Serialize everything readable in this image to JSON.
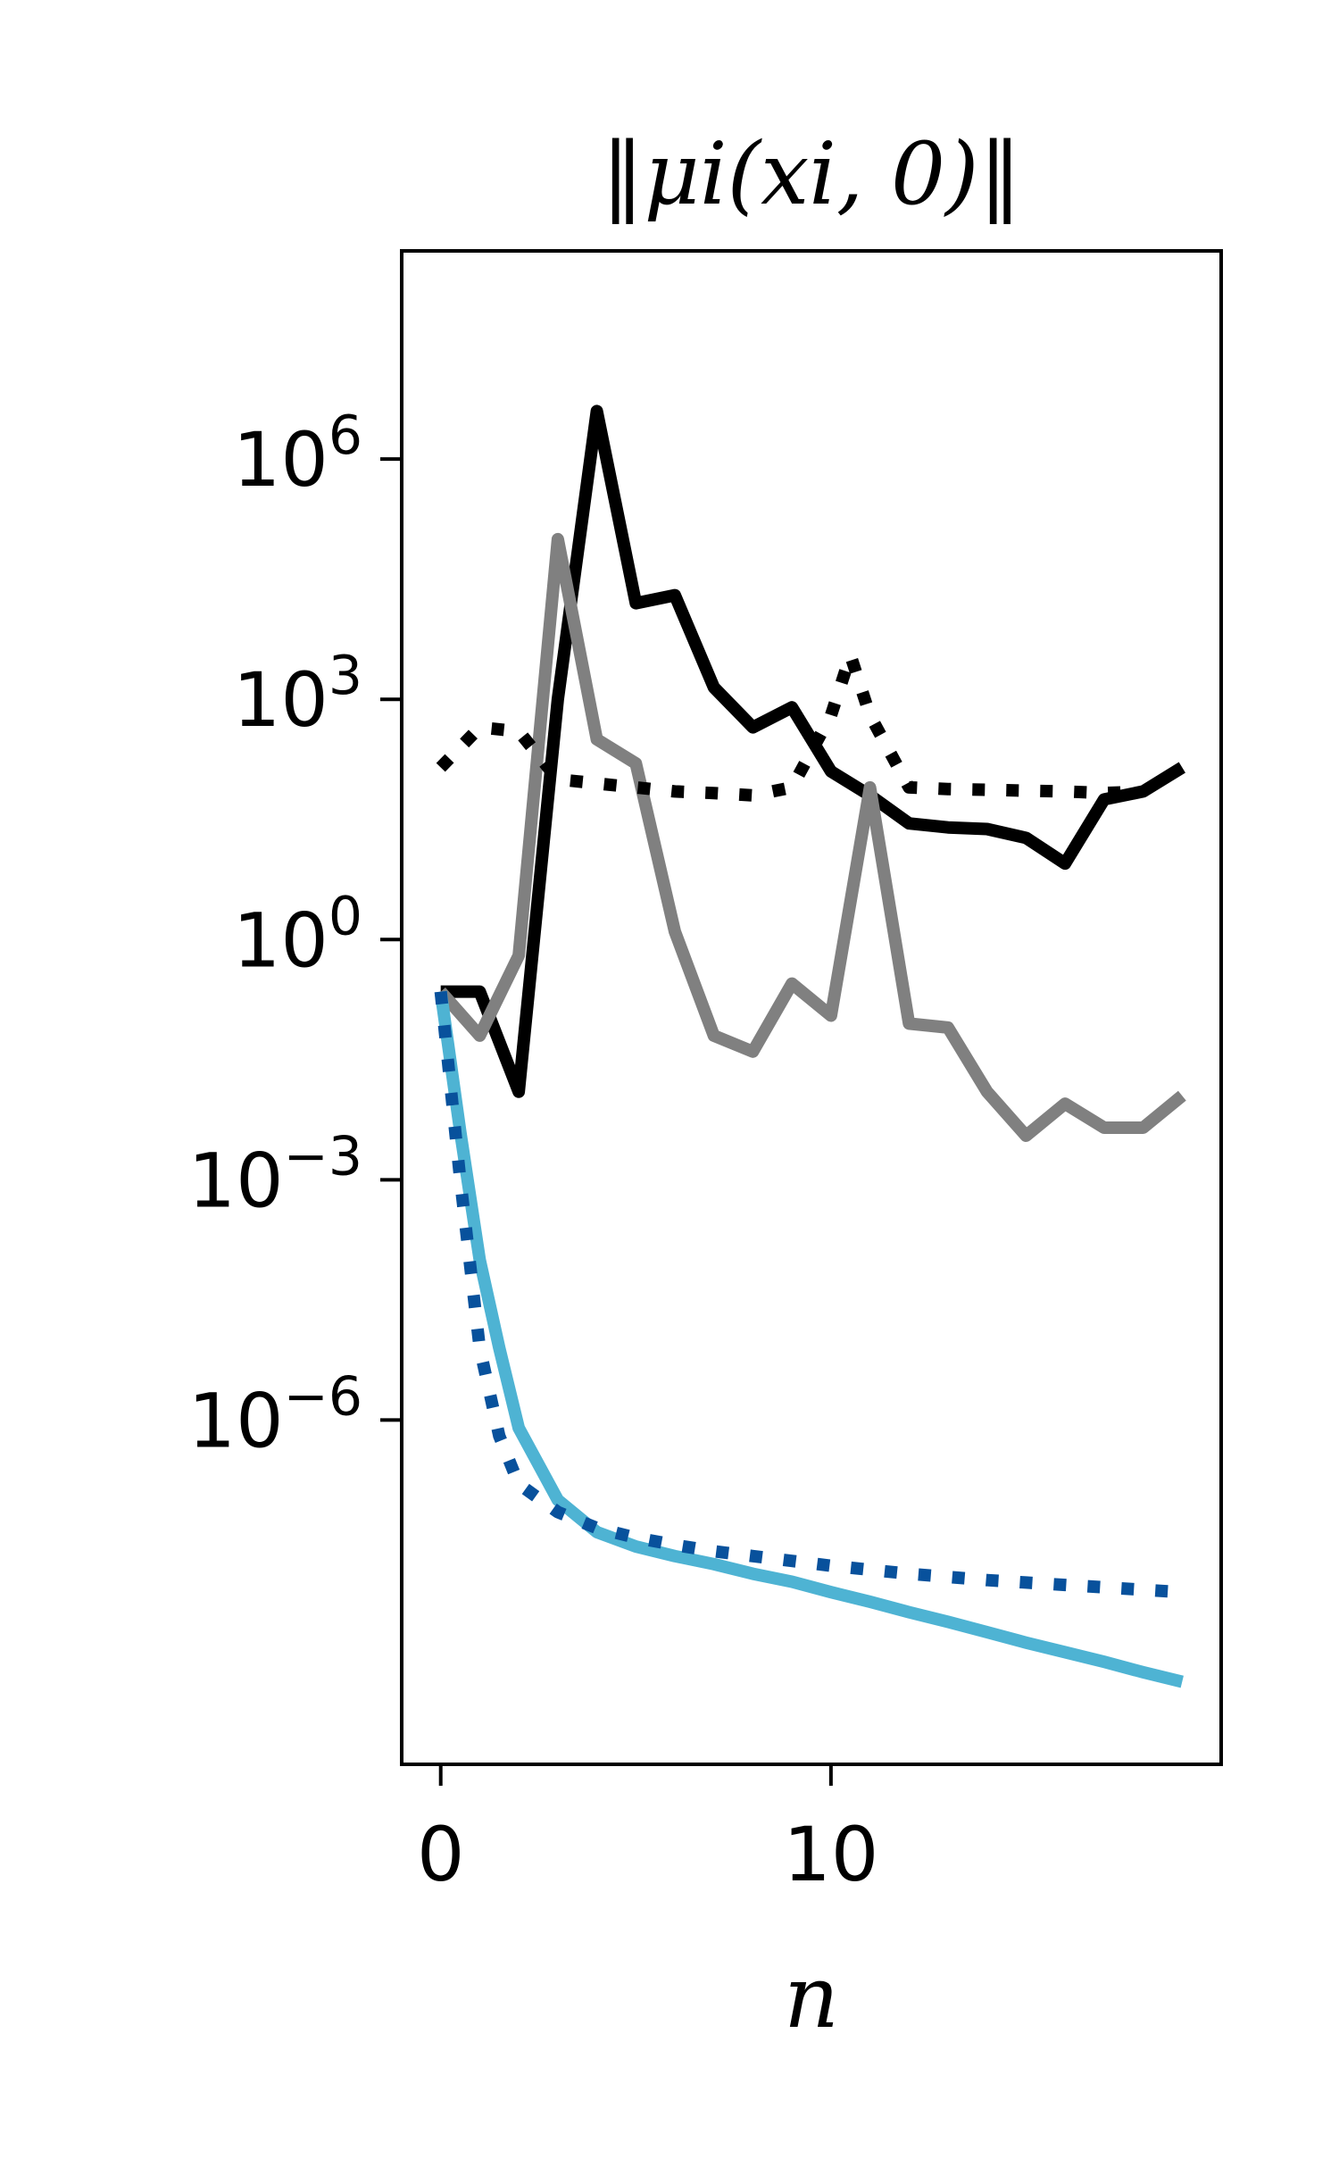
{
  "chart_data": {
    "type": "line",
    "title": "‖μi(xi, 0)‖",
    "xlabel": "n",
    "ylabel": "",
    "y_scale": "log",
    "xlim": [
      -1,
      20
    ],
    "ylim_log10": [
      -10.3,
      8.6
    ],
    "x_ticks": [
      0,
      10
    ],
    "x_tick_labels": [
      "0",
      "10"
    ],
    "y_ticks_log10": [
      6,
      3,
      0,
      -3,
      -6
    ],
    "y_tick_labels": [
      {
        "base": "10",
        "exp": "6"
      },
      {
        "base": "10",
        "exp": "3"
      },
      {
        "base": "10",
        "exp": "0"
      },
      {
        "base": "10",
        "exp": "−3"
      },
      {
        "base": "10",
        "exp": "−6"
      }
    ],
    "grid": false,
    "series": [
      {
        "color": "#000000",
        "style": "solid",
        "x": [
          0,
          1,
          2,
          3,
          4,
          5,
          6,
          7,
          8,
          9,
          10,
          11,
          12,
          13,
          14,
          15,
          16,
          17,
          18,
          19
        ],
        "log10_y": [
          -0.65,
          -0.65,
          -1.9,
          3.0,
          6.6,
          4.2,
          4.3,
          3.15,
          2.65,
          2.9,
          2.1,
          1.8,
          1.45,
          1.4,
          1.38,
          1.27,
          0.95,
          1.75,
          1.85,
          2.15
        ]
      },
      {
        "color": "#808080",
        "style": "solid",
        "x": [
          0,
          1,
          2,
          3,
          4,
          5,
          6,
          7,
          8,
          9,
          10,
          11,
          12,
          13,
          14,
          15,
          16,
          17,
          18,
          19
        ],
        "log10_y": [
          -0.65,
          -1.2,
          -0.2,
          5.0,
          2.5,
          2.2,
          0.1,
          -1.2,
          -1.4,
          -0.55,
          -0.95,
          1.9,
          -1.05,
          -1.1,
          -1.9,
          -2.45,
          -2.05,
          -2.35,
          -2.35,
          -1.95
        ]
      },
      {
        "color": "#000000",
        "style": "dotted",
        "x": [
          0,
          1,
          2,
          3,
          4,
          5,
          6,
          7,
          8,
          9,
          10,
          10.5,
          11,
          12,
          13,
          14,
          15,
          16,
          17,
          18
        ],
        "log10_y": [
          2.15,
          2.65,
          2.6,
          2.0,
          1.95,
          1.9,
          1.85,
          1.83,
          1.8,
          1.9,
          2.8,
          3.55,
          2.8,
          1.9,
          1.88,
          1.87,
          1.86,
          1.85,
          1.83,
          1.85
        ]
      },
      {
        "color": "#4EB3D3",
        "style": "solid",
        "x": [
          0,
          0.5,
          1,
          1.5,
          2,
          3,
          4,
          5,
          6,
          7,
          8,
          9,
          10,
          11,
          12,
          13,
          14,
          15,
          16,
          17,
          18,
          19
        ],
        "log10_y": [
          -0.65,
          -2.4,
          -4.0,
          -5.1,
          -6.1,
          -7.0,
          -7.4,
          -7.58,
          -7.7,
          -7.8,
          -7.92,
          -8.02,
          -8.15,
          -8.27,
          -8.4,
          -8.52,
          -8.65,
          -8.78,
          -8.9,
          -9.02,
          -9.15,
          -9.27
        ]
      },
      {
        "color": "#08519C",
        "style": "dotted",
        "x": [
          0,
          0.5,
          1,
          1.5,
          2,
          3,
          4,
          5,
          6,
          7,
          8,
          9,
          10,
          11,
          12,
          13,
          14,
          15,
          16,
          17,
          18,
          19
        ],
        "log10_y": [
          -0.65,
          -3.0,
          -5.1,
          -6.2,
          -6.8,
          -7.15,
          -7.35,
          -7.47,
          -7.56,
          -7.64,
          -7.7,
          -7.76,
          -7.82,
          -7.87,
          -7.92,
          -7.96,
          -8.0,
          -8.03,
          -8.06,
          -8.09,
          -8.12,
          -8.15
        ]
      }
    ]
  }
}
